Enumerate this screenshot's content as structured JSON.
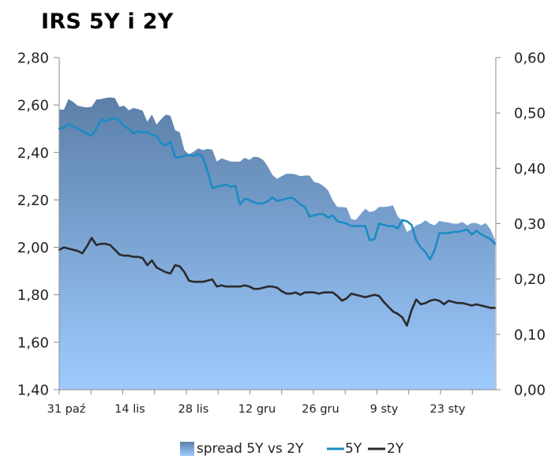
{
  "chart_data": {
    "type": "area+line",
    "title": "IRS 5Y i 2Y",
    "y_left": {
      "ticks": [
        "2,80",
        "2,60",
        "2,40",
        "2,20",
        "2,00",
        "1,80",
        "1,60",
        "1,40"
      ],
      "ylim": [
        1.4,
        2.8
      ]
    },
    "y_right": {
      "ticks": [
        "0,60",
        "0,50",
        "0,40",
        "0,30",
        "0,20",
        "0,10",
        "0,00"
      ],
      "ylim": [
        0.0,
        0.6
      ]
    },
    "x_ticks": [
      "31 paź",
      "14 lis",
      "28 lis",
      "12 gru",
      "26 gru",
      "9 sty",
      "23 sty"
    ],
    "legend": [
      "spread 5Y vs 2Y",
      "5Y",
      "2Y"
    ],
    "colors": {
      "spread_top": "#5b7fa8",
      "spread_bottom": "#9ecbff",
      "y5": "#1b8bc4",
      "y2": "#2b2b2b"
    },
    "series": [
      {
        "name": "5Y",
        "axis": "left",
        "values": [
          2.5,
          2.505,
          2.52,
          2.51,
          2.5,
          2.49,
          2.48,
          2.47,
          2.5,
          2.54,
          2.53,
          2.54,
          2.545,
          2.535,
          2.51,
          2.5,
          2.48,
          2.49,
          2.485,
          2.485,
          2.475,
          2.47,
          2.44,
          2.43,
          2.445,
          2.38,
          2.38,
          2.385,
          2.39,
          2.385,
          2.395,
          2.38,
          2.32,
          2.25,
          2.255,
          2.26,
          2.265,
          2.255,
          2.26,
          2.18,
          2.205,
          2.2,
          2.19,
          2.185,
          2.185,
          2.195,
          2.21,
          2.195,
          2.2,
          2.205,
          2.21,
          2.2,
          2.18,
          2.17,
          2.13,
          2.135,
          2.14,
          2.14,
          2.125,
          2.135,
          2.11,
          2.105,
          2.1,
          2.09,
          2.09,
          2.09,
          2.09,
          2.03,
          2.035,
          2.1,
          2.095,
          2.09,
          2.09,
          2.08,
          2.115,
          2.11,
          2.095,
          2.03,
          2.0,
          1.98,
          1.95,
          1.99,
          2.06,
          2.06,
          2.06,
          2.065,
          2.065,
          2.07,
          2.075,
          2.055,
          2.07,
          2.055,
          2.045,
          2.035,
          2.015
        ]
      },
      {
        "name": "2Y",
        "axis": "left",
        "values": [
          1.99,
          2.0,
          1.995,
          1.99,
          1.985,
          1.975,
          2.005,
          2.04,
          2.01,
          2.015,
          2.015,
          2.01,
          1.99,
          1.97,
          1.965,
          1.965,
          1.96,
          1.96,
          1.955,
          1.925,
          1.945,
          1.915,
          1.905,
          1.895,
          1.89,
          1.925,
          1.92,
          1.895,
          1.86,
          1.855,
          1.855,
          1.855,
          1.86,
          1.865,
          1.835,
          1.84,
          1.835,
          1.835,
          1.835,
          1.835,
          1.84,
          1.835,
          1.825,
          1.825,
          1.83,
          1.835,
          1.835,
          1.83,
          1.815,
          1.805,
          1.805,
          1.81,
          1.8,
          1.81,
          1.81,
          1.81,
          1.805,
          1.81,
          1.81,
          1.81,
          1.795,
          1.775,
          1.785,
          1.805,
          1.8,
          1.795,
          1.79,
          1.795,
          1.8,
          1.795,
          1.77,
          1.75,
          1.73,
          1.72,
          1.705,
          1.67,
          1.735,
          1.78,
          1.76,
          1.765,
          1.775,
          1.78,
          1.775,
          1.76,
          1.775,
          1.77,
          1.765,
          1.765,
          1.76,
          1.755,
          1.76,
          1.755,
          1.75,
          1.745,
          1.745
        ]
      },
      {
        "name": "spread 5Y vs 2Y",
        "axis": "right",
        "values": [
          0.506,
          0.506,
          0.525,
          0.52,
          0.513,
          0.511,
          0.51,
          0.511,
          0.524,
          0.525,
          0.527,
          0.528,
          0.527,
          0.511,
          0.513,
          0.505,
          0.509,
          0.507,
          0.504,
          0.484,
          0.497,
          0.479,
          0.489,
          0.497,
          0.495,
          0.469,
          0.465,
          0.433,
          0.425,
          0.43,
          0.436,
          0.433,
          0.435,
          0.434,
          0.412,
          0.418,
          0.415,
          0.412,
          0.412,
          0.412,
          0.419,
          0.415,
          0.421,
          0.42,
          0.415,
          0.403,
          0.388,
          0.381,
          0.386,
          0.39,
          0.39,
          0.389,
          0.386,
          0.387,
          0.387,
          0.375,
          0.373,
          0.368,
          0.36,
          0.342,
          0.33,
          0.33,
          0.329,
          0.308,
          0.307,
          0.317,
          0.327,
          0.321,
          0.323,
          0.33,
          0.33,
          0.331,
          0.333,
          0.313,
          0.305,
          0.285,
          0.29,
          0.297,
          0.3,
          0.306,
          0.3,
          0.297,
          0.305,
          0.303,
          0.302,
          0.3,
          0.3,
          0.303,
          0.297,
          0.301,
          0.301,
          0.297,
          0.301,
          0.29,
          0.271
        ]
      }
    ]
  }
}
